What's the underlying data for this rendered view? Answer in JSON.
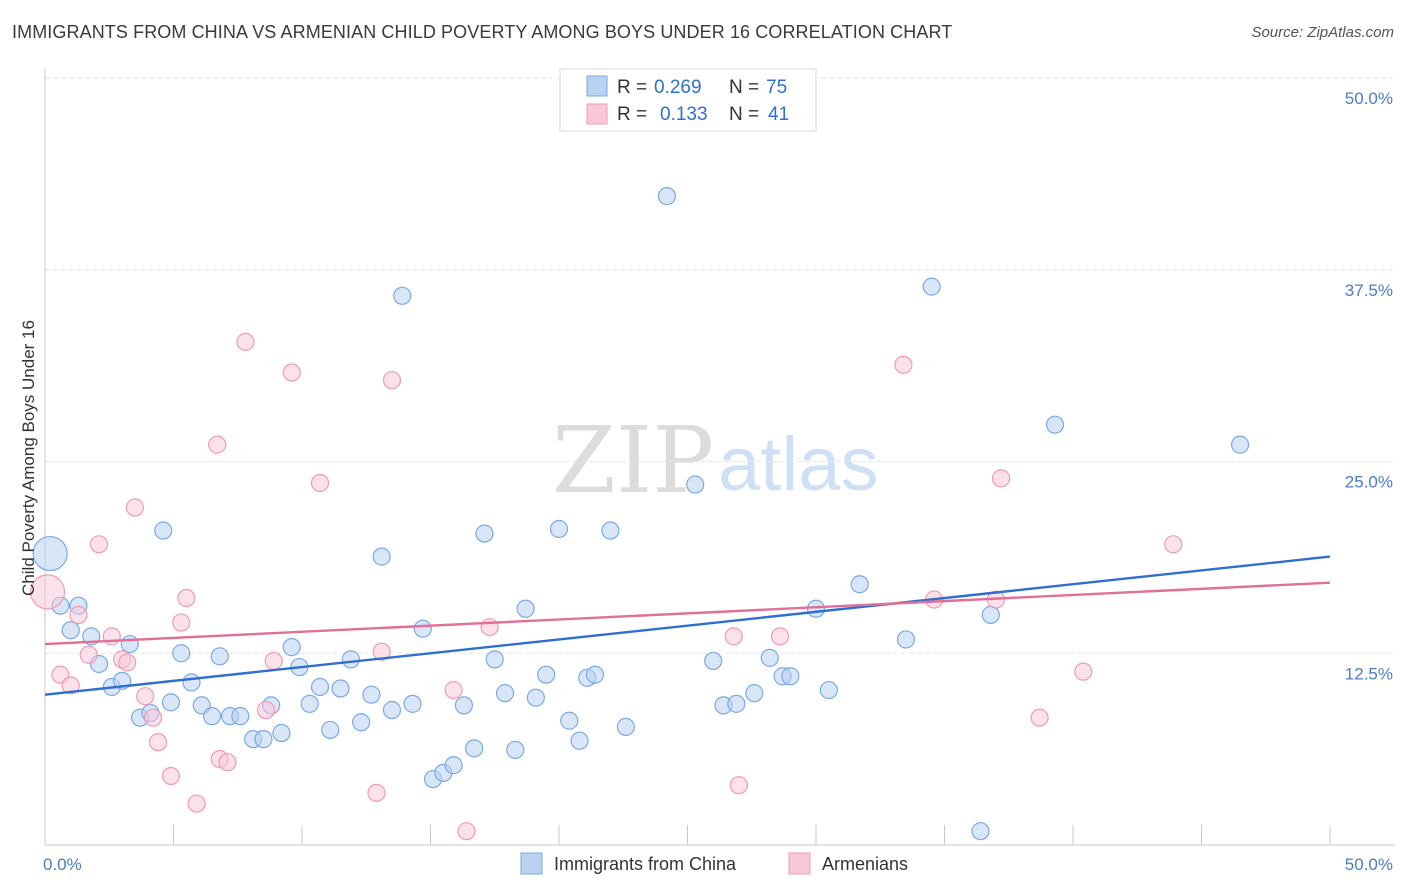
{
  "title": "IMMIGRANTS FROM CHINA VS ARMENIAN CHILD POVERTY AMONG BOYS UNDER 16 CORRELATION CHART",
  "source": "Source: ZipAtlas.com",
  "watermark": {
    "left": "ZIP",
    "right": "atlas"
  },
  "legend": {
    "r_label": "R =",
    "n_label": "N =",
    "rows": [
      {
        "r": "0.269",
        "n": "75"
      },
      {
        "r": "0.133",
        "n": "41"
      }
    ]
  },
  "chart_data": {
    "type": "scatter",
    "title": "IMMIGRANTS FROM CHINA VS ARMENIAN CHILD POVERTY AMONG BOYS UNDER 16 CORRELATION CHART",
    "xlabel": "",
    "ylabel": "Child Poverty Among Boys Under 16",
    "xlim": [
      0,
      50
    ],
    "ylim": [
      0,
      50
    ],
    "x_tick_labels": [
      "0.0%",
      "50.0%"
    ],
    "y_ticks": [
      12.5,
      25.0,
      37.5,
      50.0
    ],
    "y_tick_labels": [
      "12.5%",
      "25.0%",
      "37.5%",
      "50.0%"
    ],
    "legend_position": "top-center",
    "series": [
      {
        "name": "Immigrants from China",
        "color": "#7aaae6",
        "fill": "#b9d2f2",
        "trend_color": "#2f6fcf",
        "r": 0.269,
        "n": 75,
        "trend": [
          [
            0,
            9.8
          ],
          [
            50,
            18.8
          ]
        ],
        "points": [
          [
            0.2,
            19.0
          ],
          [
            0.6,
            15.6
          ],
          [
            1.0,
            14.0
          ],
          [
            1.3,
            15.6
          ],
          [
            1.8,
            13.6
          ],
          [
            2.1,
            11.8
          ],
          [
            2.6,
            10.3
          ],
          [
            3.0,
            10.7
          ],
          [
            3.3,
            13.1
          ],
          [
            3.7,
            8.3
          ],
          [
            4.1,
            8.6
          ],
          [
            4.6,
            20.5
          ],
          [
            4.9,
            9.3
          ],
          [
            5.3,
            12.5
          ],
          [
            5.7,
            10.6
          ],
          [
            6.1,
            9.1
          ],
          [
            6.5,
            8.4
          ],
          [
            6.8,
            12.3
          ],
          [
            7.2,
            8.4
          ],
          [
            7.6,
            8.4
          ],
          [
            8.1,
            6.9
          ],
          [
            8.5,
            6.9
          ],
          [
            8.8,
            9.1
          ],
          [
            9.2,
            7.3
          ],
          [
            9.6,
            12.9
          ],
          [
            9.9,
            11.6
          ],
          [
            10.3,
            9.2
          ],
          [
            10.7,
            10.3
          ],
          [
            11.1,
            7.5
          ],
          [
            11.5,
            10.2
          ],
          [
            11.9,
            12.1
          ],
          [
            12.3,
            8.0
          ],
          [
            12.7,
            9.8
          ],
          [
            13.1,
            18.8
          ],
          [
            13.5,
            8.8
          ],
          [
            13.9,
            35.8
          ],
          [
            14.3,
            9.2
          ],
          [
            14.7,
            14.1
          ],
          [
            15.1,
            4.3
          ],
          [
            15.5,
            4.7
          ],
          [
            15.9,
            5.2
          ],
          [
            16.3,
            9.1
          ],
          [
            16.7,
            6.3
          ],
          [
            17.1,
            20.3
          ],
          [
            17.5,
            12.1
          ],
          [
            17.9,
            9.9
          ],
          [
            18.3,
            6.2
          ],
          [
            18.7,
            15.4
          ],
          [
            19.1,
            9.6
          ],
          [
            19.5,
            11.1
          ],
          [
            20.0,
            20.6
          ],
          [
            20.4,
            8.1
          ],
          [
            20.8,
            6.8
          ],
          [
            21.1,
            10.9
          ],
          [
            21.4,
            11.1
          ],
          [
            22.0,
            20.5
          ],
          [
            22.6,
            7.7
          ],
          [
            24.2,
            42.3
          ],
          [
            25.3,
            23.5
          ],
          [
            26.0,
            12.0
          ],
          [
            26.4,
            9.1
          ],
          [
            26.9,
            9.2
          ],
          [
            27.6,
            9.9
          ],
          [
            28.2,
            12.2
          ],
          [
            28.7,
            11.0
          ],
          [
            29.0,
            11.0
          ],
          [
            30.0,
            15.4
          ],
          [
            30.5,
            10.1
          ],
          [
            31.7,
            17.0
          ],
          [
            33.5,
            13.4
          ],
          [
            34.5,
            36.4
          ],
          [
            36.4,
            0.9
          ],
          [
            36.8,
            15.0
          ],
          [
            39.3,
            27.4
          ],
          [
            46.5,
            26.1
          ]
        ],
        "big_points": [
          [
            0.2,
            19.0
          ]
        ]
      },
      {
        "name": "Armenians",
        "color": "#f09ab7",
        "fill": "#f8c8d8",
        "trend_color": "#e07098",
        "r": 0.133,
        "n": 41,
        "trend": [
          [
            0,
            13.1
          ],
          [
            50,
            17.1
          ]
        ],
        "points": [
          [
            0.1,
            16.5
          ],
          [
            0.6,
            11.1
          ],
          [
            1.0,
            10.4
          ],
          [
            1.3,
            15.0
          ],
          [
            1.7,
            12.4
          ],
          [
            2.1,
            19.6
          ],
          [
            2.6,
            13.6
          ],
          [
            3.0,
            12.1
          ],
          [
            3.2,
            11.9
          ],
          [
            3.5,
            22.0
          ],
          [
            3.9,
            9.7
          ],
          [
            4.2,
            8.3
          ],
          [
            4.4,
            6.7
          ],
          [
            4.9,
            4.5
          ],
          [
            5.3,
            14.5
          ],
          [
            5.5,
            16.1
          ],
          [
            5.9,
            2.7
          ],
          [
            6.7,
            26.1
          ],
          [
            6.8,
            5.6
          ],
          [
            7.1,
            5.4
          ],
          [
            7.8,
            32.8
          ],
          [
            8.6,
            8.8
          ],
          [
            8.9,
            12.0
          ],
          [
            9.6,
            30.8
          ],
          [
            10.7,
            23.6
          ],
          [
            12.9,
            3.4
          ],
          [
            13.1,
            12.6
          ],
          [
            13.5,
            30.3
          ],
          [
            15.9,
            10.1
          ],
          [
            16.4,
            0.9
          ],
          [
            17.3,
            14.2
          ],
          [
            26.8,
            13.6
          ],
          [
            27.0,
            3.9
          ],
          [
            28.6,
            13.6
          ],
          [
            33.4,
            31.3
          ],
          [
            34.6,
            16.0
          ],
          [
            37.2,
            23.9
          ],
          [
            37.0,
            16.0
          ],
          [
            38.7,
            8.3
          ],
          [
            40.4,
            11.3
          ],
          [
            43.9,
            19.6
          ]
        ],
        "big_points": [
          [
            0.1,
            16.5
          ]
        ]
      }
    ]
  }
}
